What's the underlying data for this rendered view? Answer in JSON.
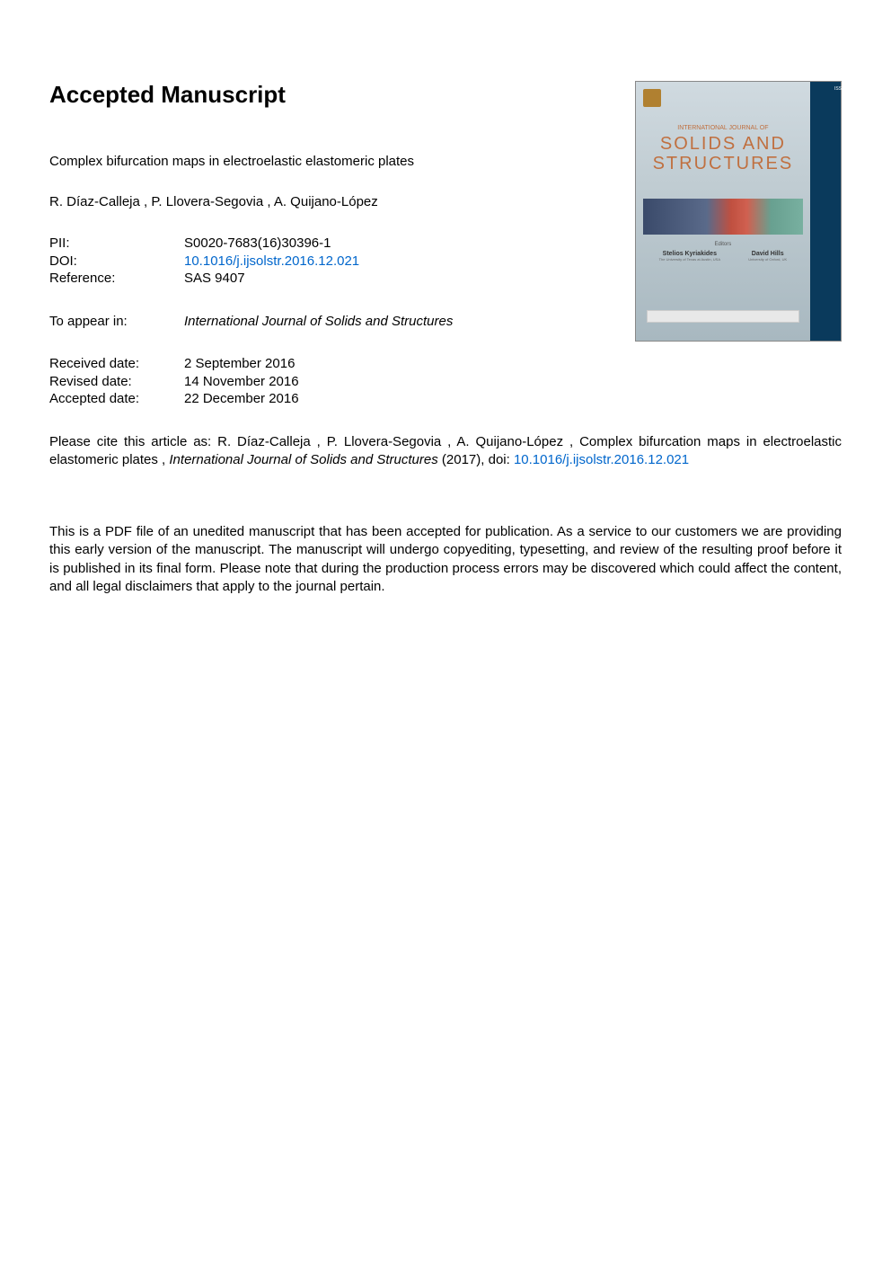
{
  "header": {
    "title": "Accepted Manuscript"
  },
  "article": {
    "title": "Complex bifurcation maps in electroelastic elastomeric plates",
    "authors": " R. Díaz-Calleja ,  P. Llovera-Segovia ,  A. Quijano-López"
  },
  "metadata": {
    "pii_label": "PII:",
    "pii_value": "S0020-7683(16)30396-1",
    "doi_label": "DOI:",
    "doi_value": "10.1016/j.ijsolstr.2016.12.021",
    "reference_label": "Reference:",
    "reference_value": "SAS 9407",
    "appear_label": "To appear in:",
    "appear_value": "International Journal of Solids and Structures",
    "received_label": "Received date:",
    "received_value": "2 September 2016",
    "revised_label": "Revised date:",
    "revised_value": "14 November 2016",
    "accepted_label": "Accepted date:",
    "accepted_value": "22 December 2016"
  },
  "citation": {
    "prefix": "Please cite this article as:  R. Díaz-Calleja ,  P. Llovera-Segovia ,  A. Quijano-López , Complex bifurcation maps in electroelastic elastomeric plates , ",
    "journal": "International Journal of Solids and Structures",
    "year": " (2017), doi: ",
    "doi": "10.1016/j.ijsolstr.2016.12.021"
  },
  "disclaimer": {
    "text": "This is a PDF file of an unedited manuscript that has been accepted for publication. As a service to our customers we are providing this early version of the manuscript. The manuscript will undergo copyediting, typesetting, and review of the resulting proof before it is published in its final form. Please note that during the production process errors may be discovered which could affect the content, and all legal disclaimers that apply to the journal pertain."
  },
  "cover": {
    "issn": "ISSN 0020-7683",
    "journal_label": "INTERNATIONAL JOURNAL OF",
    "journal_title_line1": "SOLIDS AND",
    "journal_title_line2": "STRUCTURES",
    "editors_label": "Editors",
    "editor1_name": "Stelios Kyriakides",
    "editor1_affil": "The University of Texas at Austin, USA",
    "editor2_name": "David Hills",
    "editor2_affil": "University of Oxford, UK"
  },
  "styles": {
    "link_color": "#0066cc",
    "text_color": "#000000",
    "background_color": "#ffffff",
    "cover_sidebar_color": "#0a3a5c",
    "cover_title_color": "#c07040"
  }
}
